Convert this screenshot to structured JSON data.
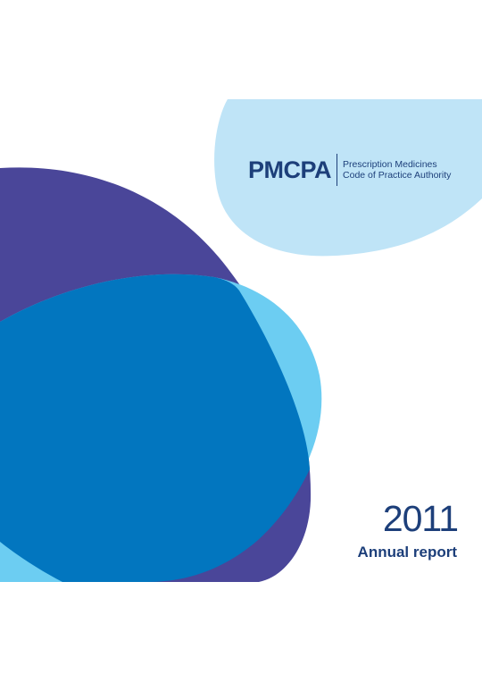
{
  "logo": {
    "acronym": "PMCPA",
    "tagline_line1": "Prescription Medicines",
    "tagline_line2": "Code of Practice Authority"
  },
  "cover": {
    "year": "2011",
    "title": "Annual report"
  },
  "colors": {
    "navy_text": "#1d3f7a",
    "light_blue_blob": "#bfe4f7",
    "purple_blob": "#4a4699",
    "cyan_blob": "#6ccdf2",
    "mid_blue_blob": "#0276bf"
  }
}
